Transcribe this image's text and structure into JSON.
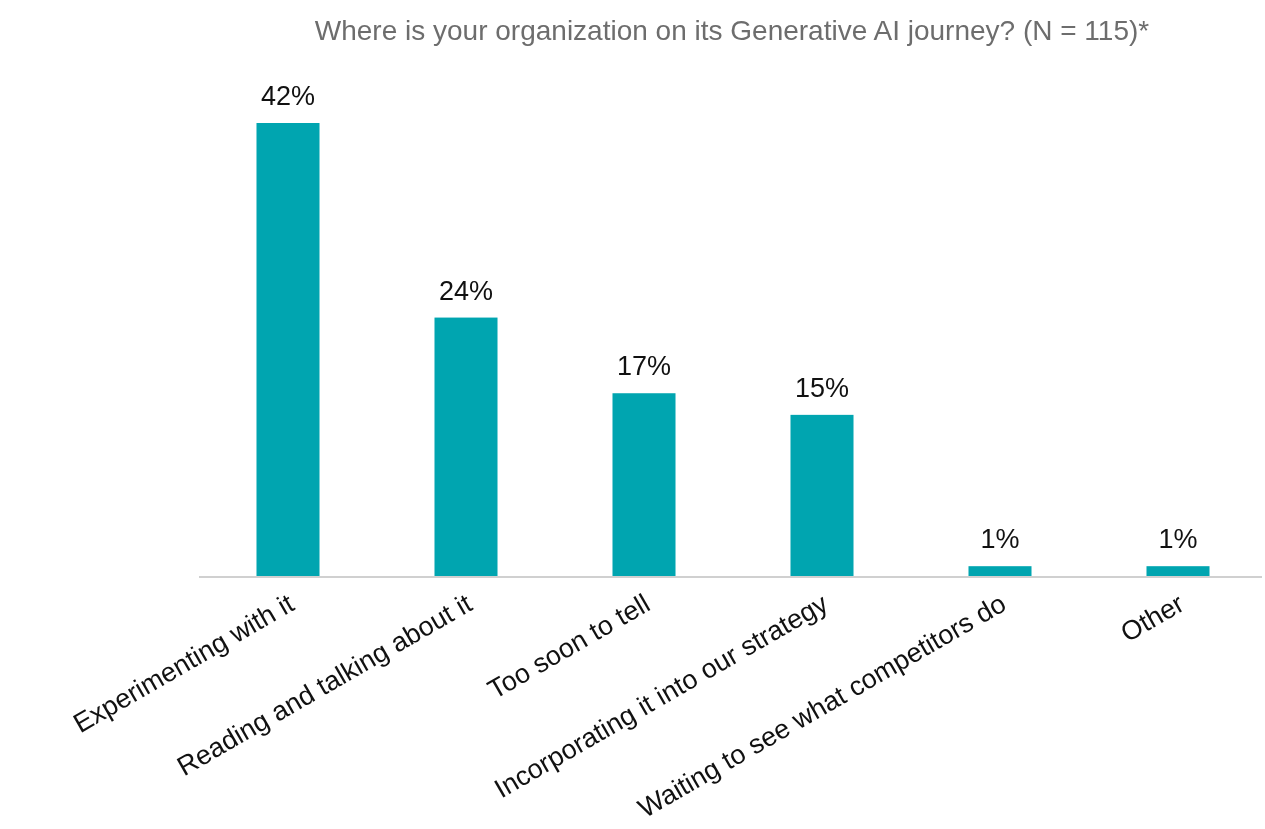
{
  "chart_data": {
    "type": "bar",
    "title": "Where is your organization on its Generative AI journey? (N = 115)*",
    "categories": [
      "Experimenting with it",
      "Reading and talking about it",
      "Too soon to tell",
      "Incorporating it into our strategy",
      "Waiting to see what competitors do",
      "Other"
    ],
    "values": [
      42,
      24,
      17,
      15,
      1,
      1
    ],
    "value_labels": [
      "42%",
      "24%",
      "17%",
      "15%",
      "1%",
      "1%"
    ],
    "color": "#00a5b0"
  }
}
